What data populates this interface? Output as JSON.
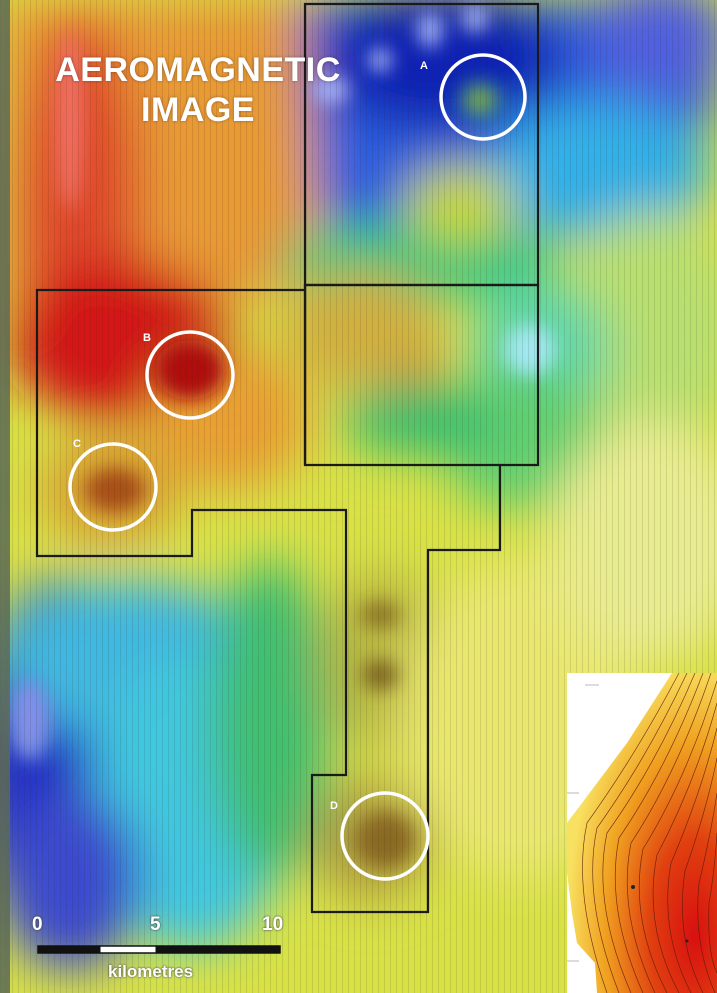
{
  "title": "AEROMAGNETIC\nIMAGE",
  "target_labels": [
    "A",
    "B",
    "C",
    "D"
  ],
  "scale": {
    "ticks": [
      "0",
      "5",
      "10"
    ],
    "unit": "kilometres"
  },
  "colors": {
    "high": "#d81414",
    "mid_high": "#e8a020",
    "mid": "#d8e040",
    "mid_low": "#30c060",
    "low_cyan": "#40d8e8",
    "low": "#1838d0",
    "target_circle": "#ffffff",
    "boundary": "#1a1a1a"
  },
  "icons": [
    "target-circle-icon",
    "scale-bar-icon"
  ]
}
